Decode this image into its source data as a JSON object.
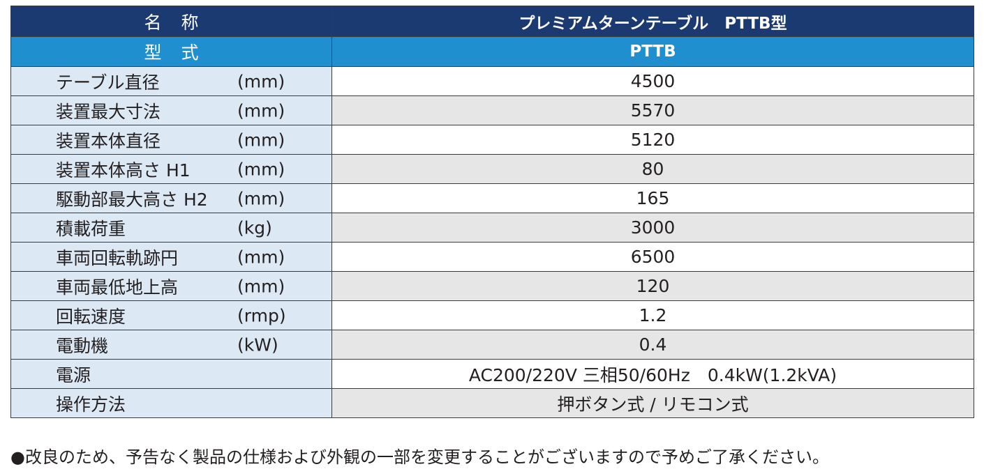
{
  "header": {
    "name_label": "名称",
    "name_value": "プレミアムターンテーブル　PTTB型",
    "model_label": "型式",
    "model_value": "PTTB"
  },
  "rows": [
    {
      "label": "テーブル直径",
      "unit": "(mm)",
      "value": "4500"
    },
    {
      "label": "装置最大寸法",
      "unit": "(mm)",
      "value": "5570"
    },
    {
      "label": "装置本体直径",
      "unit": "(mm)",
      "value": "5120"
    },
    {
      "label": "装置本体高さ H1",
      "unit": "(mm)",
      "value": "80"
    },
    {
      "label": "駆動部最大高さ H2",
      "unit": "(mm)",
      "value": "165"
    },
    {
      "label": "積載荷重",
      "unit": "(kg)",
      "value": "3000"
    },
    {
      "label": "車両回転軌跡円",
      "unit": "(mm)",
      "value": "6500"
    },
    {
      "label": "車両最低地上高",
      "unit": "(mm)",
      "value": "120"
    },
    {
      "label": "回転速度",
      "unit": "(rmp)",
      "value": "1.2"
    },
    {
      "label": "電動機",
      "unit": "(kW)",
      "value": "0.4"
    },
    {
      "label": "電源",
      "unit": "",
      "value": "AC200/220V 三相50/60Hz　0.4kW(1.2kVA)"
    },
    {
      "label": "操作方法",
      "unit": "",
      "value": "押ボタン式 / リモコン式"
    }
  ],
  "footnote": "●改良のため、予告なく製品の仕様および外観の一部を変更することがございますので予めご了承ください。",
  "colors": {
    "header_navy": "#1b3a72",
    "header_blue": "#1f8fd0",
    "label_bg": "#dde8f5",
    "alt_row_bg": "#e6e6e6"
  }
}
